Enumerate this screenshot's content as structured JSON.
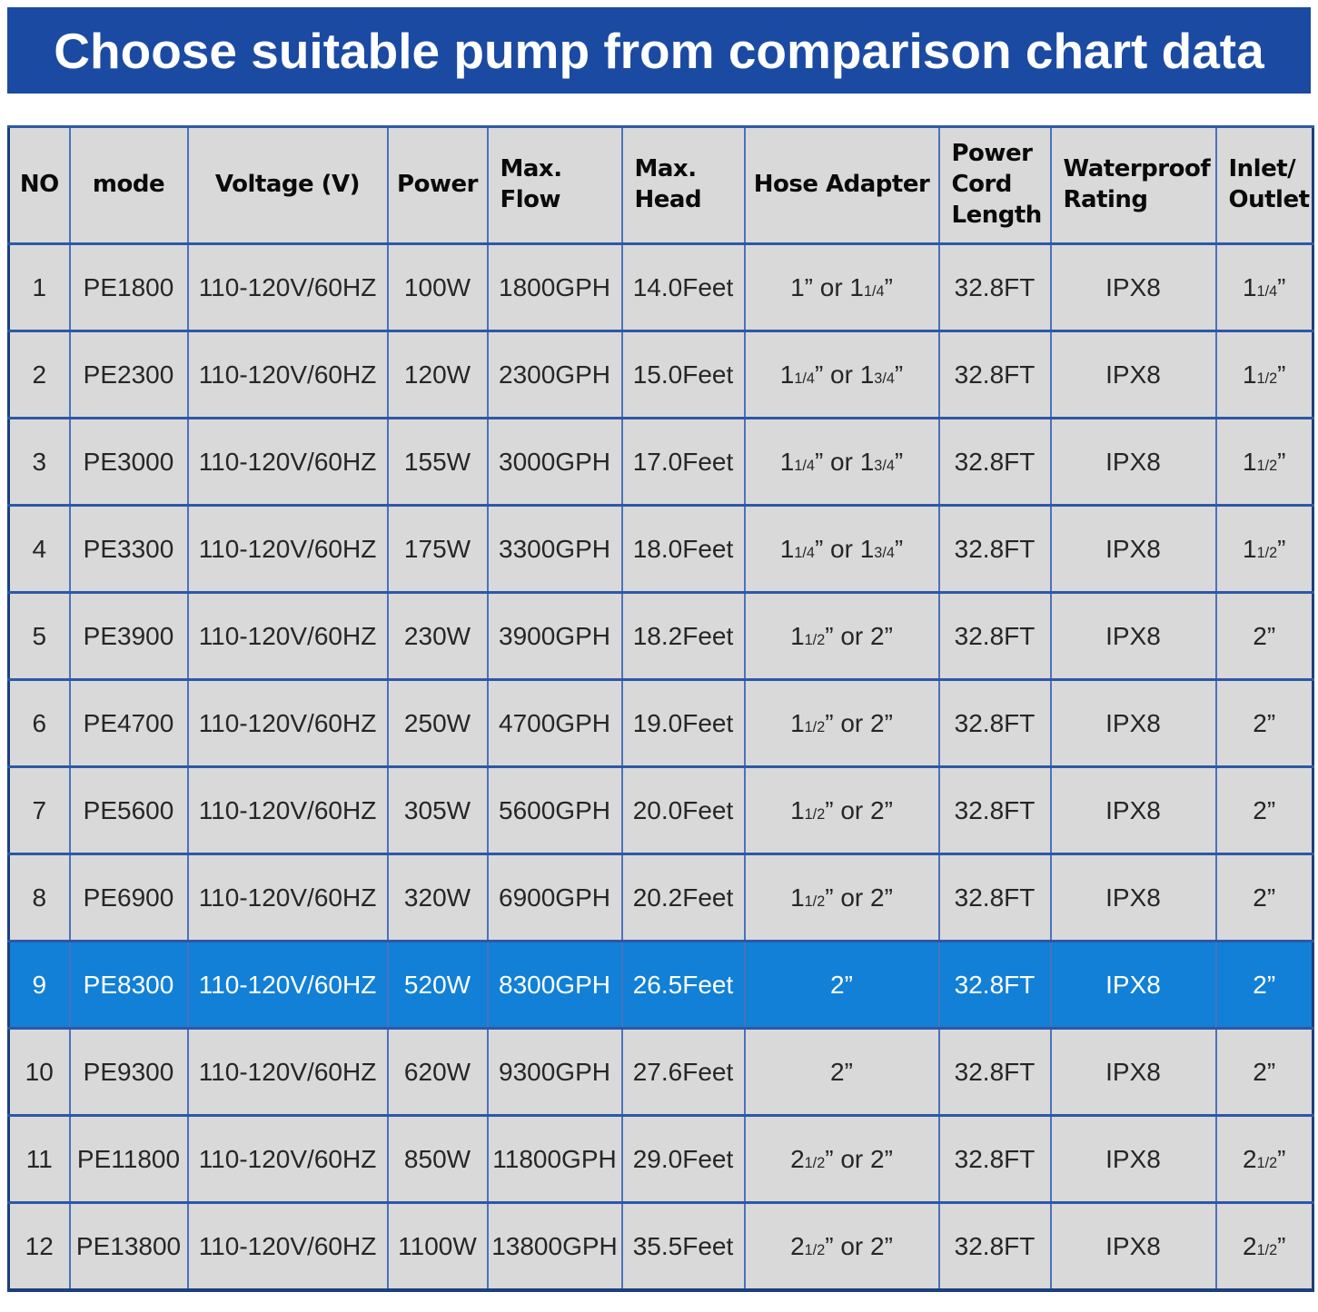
{
  "banner": {
    "title": "Choose suitable pump from comparison chart data",
    "bg_color": "#1b4aa2",
    "text_color": "#ffffff"
  },
  "chart_data": {
    "type": "table",
    "title": "Choose suitable pump from comparison chart data",
    "columns": [
      "NO",
      "mode",
      "Voltage (V)",
      "Power",
      "Max.\nFlow",
      "Max.\nHead",
      "Hose Adapter",
      "Power\nCord\nLength",
      "Waterproof\nRating",
      "Inlet/\nOutlet"
    ],
    "rows": [
      [
        "1",
        "PE1800",
        "110-120V/60HZ",
        "100W",
        "1800GPH",
        "14.0Feet",
        "1” or 1[1/4]”",
        "32.8FT",
        "IPX8",
        "1[1/4]”"
      ],
      [
        "2",
        "PE2300",
        "110-120V/60HZ",
        "120W",
        "2300GPH",
        "15.0Feet",
        "1[1/4]” or 1[3/4]”",
        "32.8FT",
        "IPX8",
        "1[1/2]”"
      ],
      [
        "3",
        "PE3000",
        "110-120V/60HZ",
        "155W",
        "3000GPH",
        "17.0Feet",
        "1[1/4]” or 1[3/4]”",
        "32.8FT",
        "IPX8",
        "1[1/2]”"
      ],
      [
        "4",
        "PE3300",
        "110-120V/60HZ",
        "175W",
        "3300GPH",
        "18.0Feet",
        "1[1/4]” or 1[3/4]”",
        "32.8FT",
        "IPX8",
        "1[1/2]”"
      ],
      [
        "5",
        "PE3900",
        "110-120V/60HZ",
        "230W",
        "3900GPH",
        "18.2Feet",
        "1[1/2]” or 2”",
        "32.8FT",
        "IPX8",
        "2”"
      ],
      [
        "6",
        "PE4700",
        "110-120V/60HZ",
        "250W",
        "4700GPH",
        "19.0Feet",
        "1[1/2]” or 2”",
        "32.8FT",
        "IPX8",
        "2”"
      ],
      [
        "7",
        "PE5600",
        "110-120V/60HZ",
        "305W",
        "5600GPH",
        "20.0Feet",
        "1[1/2]” or 2”",
        "32.8FT",
        "IPX8",
        "2”"
      ],
      [
        "8",
        "PE6900",
        "110-120V/60HZ",
        "320W",
        "6900GPH",
        "20.2Feet",
        "1[1/2]” or 2”",
        "32.8FT",
        "IPX8",
        "2”"
      ],
      [
        "9",
        "PE8300",
        "110-120V/60HZ",
        "520W",
        "8300GPH",
        "26.5Feet",
        "2”",
        "32.8FT",
        "IPX8",
        "2”"
      ],
      [
        "10",
        "PE9300",
        "110-120V/60HZ",
        "620W",
        "9300GPH",
        "27.6Feet",
        "2”",
        "32.8FT",
        "IPX8",
        "2”"
      ],
      [
        "11",
        "PE11800",
        "110-120V/60HZ",
        "850W",
        "11800GPH",
        "29.0Feet",
        "2[1/2]” or 2”",
        "32.8FT",
        "IPX8",
        "2[1/2]”"
      ],
      [
        "12",
        "PE13800",
        "110-120V/60HZ",
        "1100W",
        "13800GPH",
        "35.5Feet",
        "2[1/2]” or 2”",
        "32.8FT",
        "IPX8",
        "2[1/2]”"
      ]
    ],
    "highlighted_row_no": "9",
    "legend_position": "none",
    "grid": true,
    "colors": {
      "banner_bg": "#1b4aa2",
      "highlight_row_bg": "#1180d6",
      "highlight_row_text": "#ffffff",
      "cell_bg": "#d9d9d9",
      "vertical_grid_line": "#4a72bd",
      "horizontal_grid_line": "#2d58a6",
      "outer_border": "#1c3f7d"
    }
  }
}
